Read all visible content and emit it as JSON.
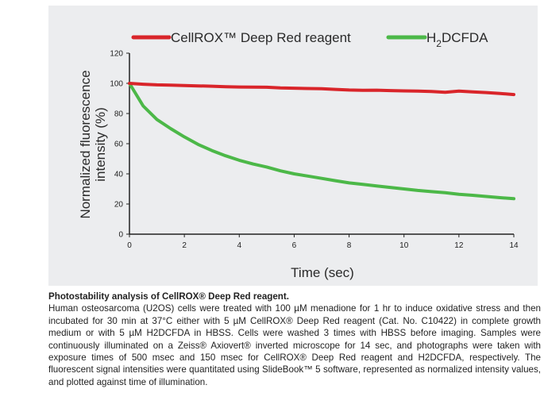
{
  "caption": {
    "title": "Photostability analysis of CellROX® Deep Red reagent.",
    "body": "Human osteosarcoma (U2OS) cells were treated with 100 µM menadione for 1 hr to induce oxidative stress and then incubated for 30 min at 37°C either with 5 µM CellROX® Deep Red reagent (Cat. No. C10422) in complete growth medium or with 5 µM H2DCFDA in HBSS. Cells were washed 3 times with HBSS before imaging. Samples were continuously illuminated on a Zeiss® Axiovert® inverted microscope for 14 sec, and photographs were taken with exposure times of 500 msec and 150 msec for CellROX® Deep Red reagent and H2DCFDA, respectively. The fluorescent signal intensities were quantitated using SlideBook™ 5 software, represented as normalized intensity values, and plotted against time of illumination."
  },
  "chart_data": {
    "type": "line",
    "title": "",
    "xlabel": "Time (sec)",
    "ylabel": "Normalized fluorescence intensity (%)",
    "xlim": [
      0,
      14
    ],
    "ylim": [
      0,
      120
    ],
    "xticks": [
      0,
      2,
      4,
      6,
      8,
      10,
      12,
      14
    ],
    "yticks": [
      0,
      20,
      40,
      60,
      80,
      100,
      120
    ],
    "grid": false,
    "legend_position": "top",
    "series": [
      {
        "name": "CellROX™ Deep Red reagent",
        "color": "#d9252a",
        "x": [
          0,
          0.5,
          1,
          1.5,
          2,
          2.5,
          3,
          3.5,
          4,
          4.5,
          5,
          5.5,
          6,
          6.5,
          7,
          7.5,
          8,
          8.5,
          9,
          9.5,
          10,
          10.5,
          11,
          11.5,
          12,
          12.5,
          13,
          13.5,
          14
        ],
        "y": [
          100,
          99.4,
          99,
          98.8,
          98.6,
          98.3,
          98.1,
          97.8,
          97.6,
          97.5,
          97.4,
          97,
          96.8,
          96.6,
          96.4,
          96,
          95.6,
          95.4,
          95.5,
          95.2,
          95,
          94.9,
          94.6,
          94.1,
          94.9,
          94.3,
          93.9,
          93.3,
          92.6
        ]
      },
      {
        "name": "H2DCFDA",
        "name_parts": [
          "H",
          "2",
          "DCFDA"
        ],
        "color": "#4cb848",
        "x": [
          0,
          0.5,
          1,
          1.5,
          2,
          2.5,
          3,
          3.5,
          4,
          4.5,
          5,
          5.5,
          6,
          6.5,
          7,
          7.5,
          8,
          8.5,
          9,
          9.5,
          10,
          10.5,
          11,
          11.5,
          12,
          12.5,
          13,
          13.5,
          14
        ],
        "y": [
          100,
          85,
          76,
          70,
          64.5,
          59.5,
          55.5,
          52,
          49,
          46.5,
          44.5,
          42,
          40,
          38.5,
          37,
          35.5,
          34,
          33,
          32,
          31,
          30,
          29,
          28.2,
          27.5,
          26.5,
          25.8,
          25,
          24.2,
          23.5
        ]
      }
    ]
  }
}
